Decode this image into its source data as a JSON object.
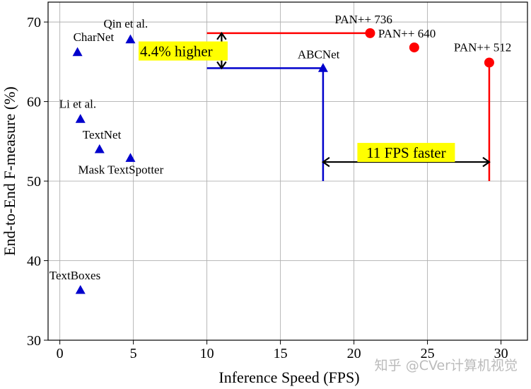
{
  "chart_data": {
    "type": "scatter",
    "xlabel": "Inference Speed (FPS)",
    "ylabel": "End-to-End F-measure (%)",
    "xlim": [
      -0.8,
      31.8
    ],
    "ylim": [
      30,
      72.5
    ],
    "xticks": [
      0,
      5,
      10,
      15,
      20,
      25,
      30
    ],
    "yticks": [
      30,
      40,
      50,
      60,
      70
    ],
    "grid": true,
    "series": [
      {
        "marker": "triangle",
        "color": "#0000cc",
        "points": [
          {
            "label": "CharNet",
            "x": 1.2,
            "y": 66.2
          },
          {
            "label": "Qin et al.",
            "x": 4.8,
            "y": 67.8
          },
          {
            "label": "Li et al.",
            "x": 1.4,
            "y": 57.8
          },
          {
            "label": "TextNet",
            "x": 2.7,
            "y": 54.0
          },
          {
            "label": "Mask TextSpotter",
            "x": 4.8,
            "y": 52.9
          },
          {
            "label": "TextBoxes",
            "x": 1.4,
            "y": 36.3
          },
          {
            "label": "ABCNet",
            "x": 17.9,
            "y": 64.2
          }
        ]
      },
      {
        "marker": "circle",
        "color": "#ff0000",
        "points": [
          {
            "label": "PAN++ 736",
            "x": 21.1,
            "y": 68.6
          },
          {
            "label": "PAN++ 640",
            "x": 24.1,
            "y": 66.8
          },
          {
            "label": "PAN++ 512",
            "x": 29.2,
            "y": 64.9
          }
        ]
      }
    ],
    "reference_lines": [
      {
        "color": "#ff0000",
        "from": [
          10,
          68.6
        ],
        "to": [
          21.1,
          68.6
        ]
      },
      {
        "color": "#0000cc",
        "from": [
          10,
          64.2
        ],
        "to": [
          17.9,
          64.2
        ]
      },
      {
        "color": "#0000cc",
        "from": [
          17.9,
          50
        ],
        "to": [
          17.9,
          64.2
        ]
      },
      {
        "color": "#ff0000",
        "from": [
          29.2,
          50
        ],
        "to": [
          29.2,
          64.9
        ]
      }
    ],
    "annotations": [
      {
        "text": "4.4% higher",
        "highlight": "#ffff00",
        "arrow": "vertical",
        "x": 11.0,
        "from": 64.2,
        "to": 68.6
      },
      {
        "text": "11 FPS faster",
        "highlight": "#ffff00",
        "arrow": "horizontal",
        "y": 52.4,
        "from": 17.9,
        "to": 29.2
      }
    ],
    "watermark": "知乎 @CVer计算机视觉"
  }
}
